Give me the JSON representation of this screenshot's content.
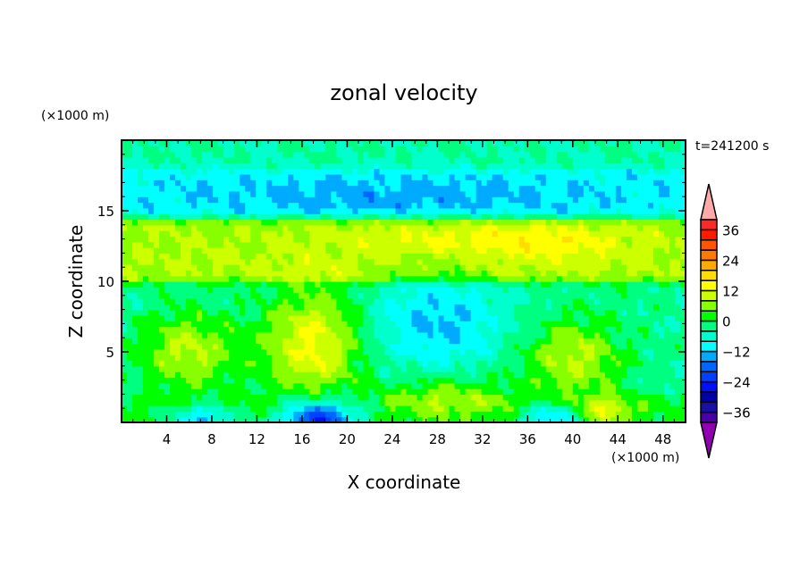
{
  "chart_data": {
    "type": "heatmap",
    "subtype": "filled-contour",
    "title": "zonal velocity",
    "xlabel": "X coordinate",
    "ylabel": "Z coordinate",
    "x_unit": "(×1000 m)",
    "y_unit": "(×1000 m)",
    "time_label": "t=241200 s",
    "xlim": [
      0,
      50
    ],
    "ylim": [
      0,
      20
    ],
    "x_ticks": [
      4,
      8,
      12,
      16,
      20,
      24,
      28,
      32,
      36,
      40,
      44,
      48
    ],
    "y_ticks": [
      5,
      10,
      15
    ],
    "colorbar": {
      "levels_min": -40,
      "levels_max": 40,
      "step": 4,
      "tick_labels": [
        "36",
        "24",
        "12",
        "0",
        "-12",
        "-24",
        "-36"
      ],
      "tick_values": [
        36,
        24,
        12,
        0,
        -12,
        -24,
        -36
      ],
      "colors_low_to_high": [
        "#4a00a8",
        "#1a10a8",
        "#0000a8",
        "#0010ff",
        "#0040ff",
        "#0066ff",
        "#00aaff",
        "#00ffff",
        "#00ffcc",
        "#00ff80",
        "#00ff00",
        "#88ff00",
        "#ccff00",
        "#ffff00",
        "#ffdd00",
        "#ffaa00",
        "#ff7a00",
        "#ff5500",
        "#ff1a00",
        "#ff2828"
      ],
      "under_color": "#9000b0",
      "over_color": "#ffaaaa"
    },
    "background_profile": [
      {
        "z_range": [
          0,
          2
        ],
        "value": 1
      },
      {
        "z_range": [
          2,
          10
        ],
        "value": -3
      },
      {
        "z_range": [
          10,
          14.5
        ],
        "value": 8
      },
      {
        "z_range": [
          14.5,
          18
        ],
        "value": -10
      },
      {
        "z_range": [
          18,
          20
        ],
        "value": -4
      }
    ],
    "features": [
      {
        "x": 6,
        "z": 5,
        "value": 12,
        "sx": 3,
        "sz": 2
      },
      {
        "x": 17,
        "z": 5.5,
        "value": 16,
        "sx": 3,
        "sz": 2.8
      },
      {
        "x": 40,
        "z": 4.5,
        "value": 12,
        "sx": 3,
        "sz": 2
      },
      {
        "x": 29,
        "z": 2,
        "value": 9,
        "sx": 4,
        "sz": 1.2
      },
      {
        "x": 17.5,
        "z": 0.3,
        "value": -26,
        "sx": 2.5,
        "sz": 1
      },
      {
        "x": 7,
        "z": 0.3,
        "value": -14,
        "sx": 2,
        "sz": 0.8
      },
      {
        "x": 38,
        "z": 0.3,
        "value": -14,
        "sx": 2,
        "sz": 0.8
      },
      {
        "x": 43,
        "z": 0.8,
        "value": 10,
        "sx": 1.5,
        "sz": 0.8
      },
      {
        "x": 28,
        "z": 7,
        "value": -10,
        "sx": 4,
        "sz": 2.5
      },
      {
        "x": 38,
        "z": 12.8,
        "value": 6,
        "sx": 5,
        "sz": 1
      },
      {
        "x": 28,
        "z": 13,
        "value": 4,
        "sx": 6,
        "sz": 1
      },
      {
        "x": 24,
        "z": 16,
        "value": -4,
        "sx": 12,
        "sz": 1
      }
    ]
  }
}
